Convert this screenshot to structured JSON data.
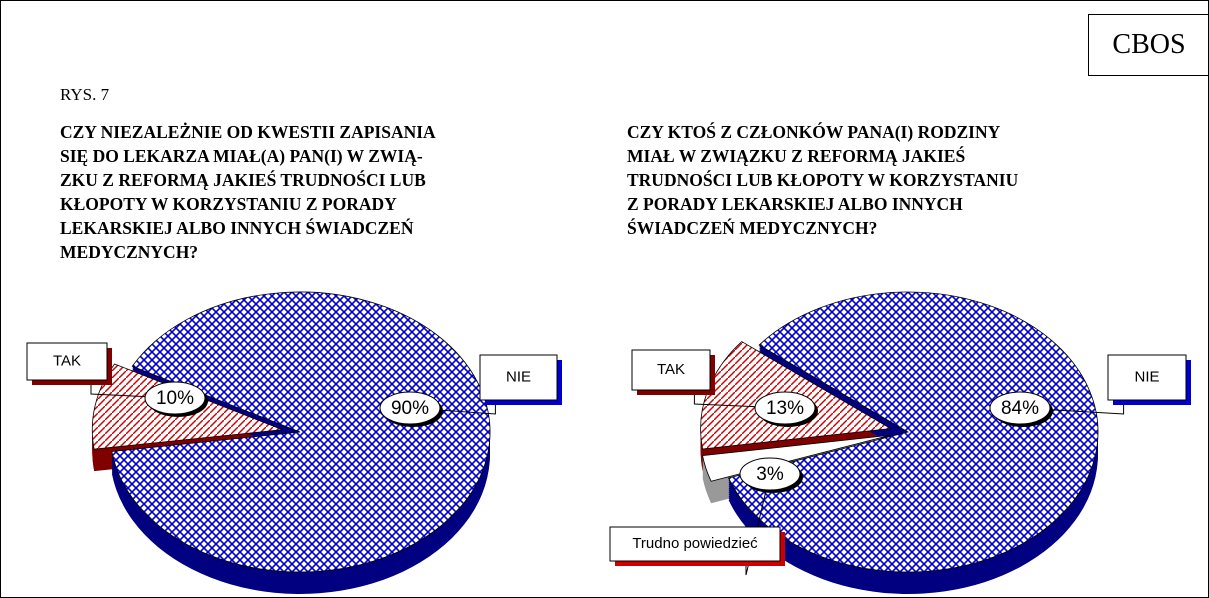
{
  "header": {
    "org": "CBOS",
    "figure": "RYS. 7"
  },
  "chart_data": [
    {
      "type": "pie",
      "title": "CZY NIEZALEŻNIE OD KWESTII ZAPISANIA\nSIĘ DO LEKARZA MIAŁ(A) PAN(I) W ZWIĄ-\nZKU Z REFORMĄ JAKIEŚ TRUDNOŚCI LUB\nKŁOPOTY W KORZYSTANIU Z PORADY\nLEKARSKIEJ ALBO INNYCH ŚWIADCZEŃ\nMEDYCZNYCH?",
      "categories": [
        "TAK",
        "NIE"
      ],
      "values": [
        10,
        90
      ],
      "value_labels": [
        "10%",
        "90%"
      ],
      "colors": [
        "#cc0000",
        "#0000cc"
      ]
    },
    {
      "type": "pie",
      "title": "CZY KTOŚ Z CZŁONKÓW PANA(I) RODZINY\nMIAŁ W ZWIĄZKU Z REFORMĄ JAKIEŚ\nTRUDNOŚCI LUB KŁOPOTY W KORZYSTANIU\nZ PORADY LEKARSKIEJ ALBO INNYCH\nŚWIADCZEŃ MEDYCZNYCH?",
      "categories": [
        "TAK",
        "Trudno powiedzieć",
        "NIE"
      ],
      "values": [
        13,
        3,
        84
      ],
      "value_labels": [
        "13%",
        "3%",
        "84%"
      ],
      "colors": [
        "#cc0000",
        "#ffffff",
        "#0000cc"
      ]
    }
  ]
}
